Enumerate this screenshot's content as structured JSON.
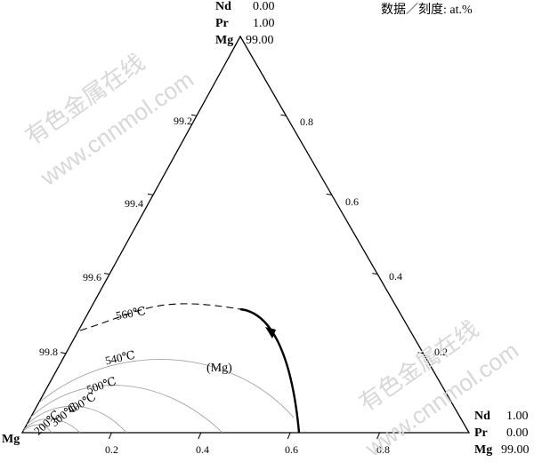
{
  "top_composition": [
    {
      "element": "Nd",
      "value": "0.00"
    },
    {
      "element": "Pr",
      "value": "1.00"
    },
    {
      "element": "Mg",
      "value": "99.00"
    }
  ],
  "right_composition": [
    {
      "element": "Nd",
      "value": "1.00"
    },
    {
      "element": "Pr",
      "value": "0.00"
    },
    {
      "element": "Mg",
      "value": "99.00"
    }
  ],
  "corner_left_label": "Mg",
  "note": "数据／刻度: at.%",
  "left_edge_ticks": [
    "99.2",
    "99.4",
    "99.6",
    "99.8"
  ],
  "right_edge_ticks": [
    "0.8",
    "0.6",
    "0.4",
    "0.2"
  ],
  "bottom_edge_ticks": [
    "0.2",
    "0.4",
    "0.6",
    "0.8"
  ],
  "isotherm_labels": [
    "560℃",
    "540℃",
    "500℃",
    "400℃",
    "300℃",
    "200℃"
  ],
  "phase_label": "(Mg)",
  "watermarks": [
    "有色金属在线",
    "www.cnnmol.com"
  ],
  "colors": {
    "line": "#000000",
    "isotherm": "#999999",
    "watermark": "#d7d7d7"
  }
}
